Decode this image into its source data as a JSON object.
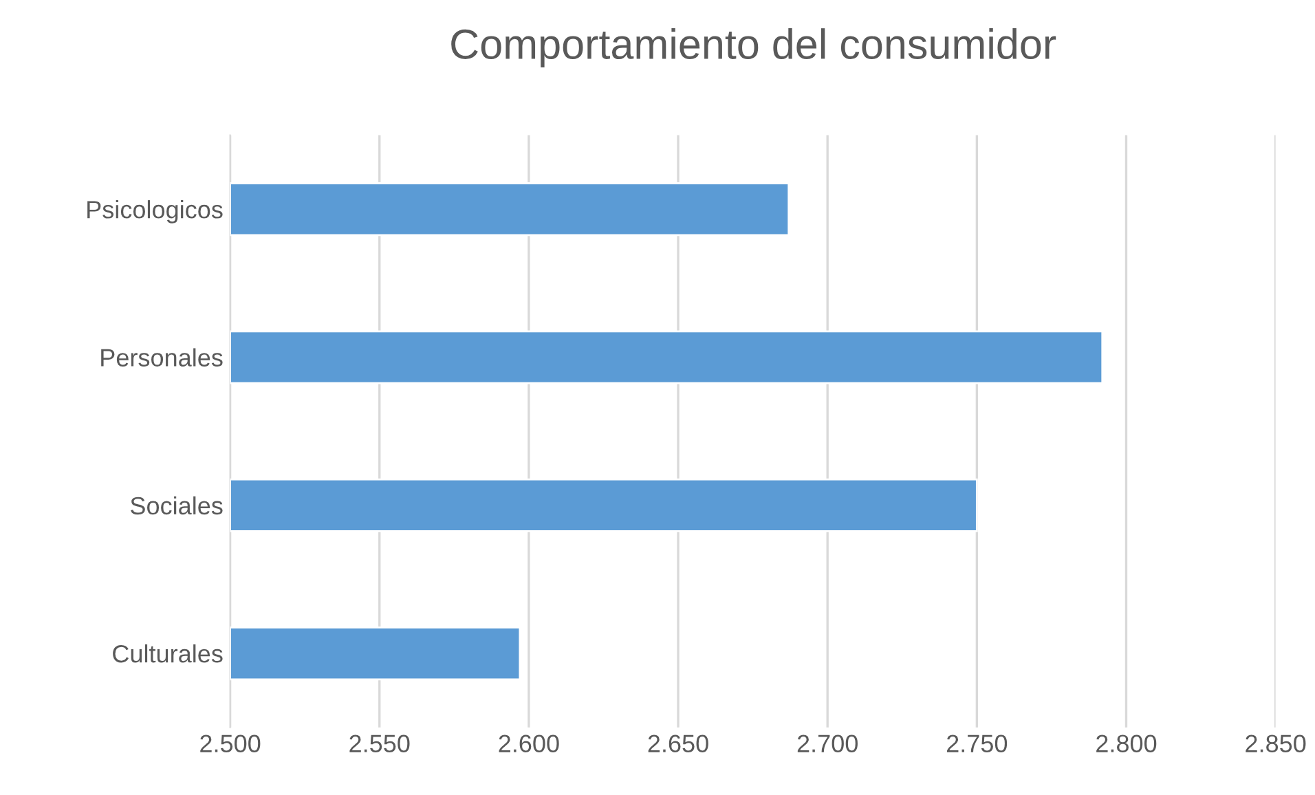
{
  "chart_data": {
    "type": "bar",
    "orientation": "horizontal",
    "title": "Comportamiento del consumidor",
    "categories": [
      "Psicologicos",
      "Personales",
      "Sociales",
      "Culturales"
    ],
    "values": [
      2.687,
      2.792,
      2.75,
      2.597
    ],
    "color": "#5b9bd5",
    "xlim": [
      2.5,
      2.85
    ],
    "xticks": [
      {
        "value": 2.5,
        "label": "2.500"
      },
      {
        "value": 2.55,
        "label": "2.550"
      },
      {
        "value": 2.6,
        "label": "2.600"
      },
      {
        "value": 2.65,
        "label": "2.650"
      },
      {
        "value": 2.7,
        "label": "2.700"
      },
      {
        "value": 2.75,
        "label": "2.750"
      },
      {
        "value": 2.8,
        "label": "2.800"
      },
      {
        "value": 2.85,
        "label": "2.850"
      }
    ],
    "grid": "x",
    "legend": false
  }
}
